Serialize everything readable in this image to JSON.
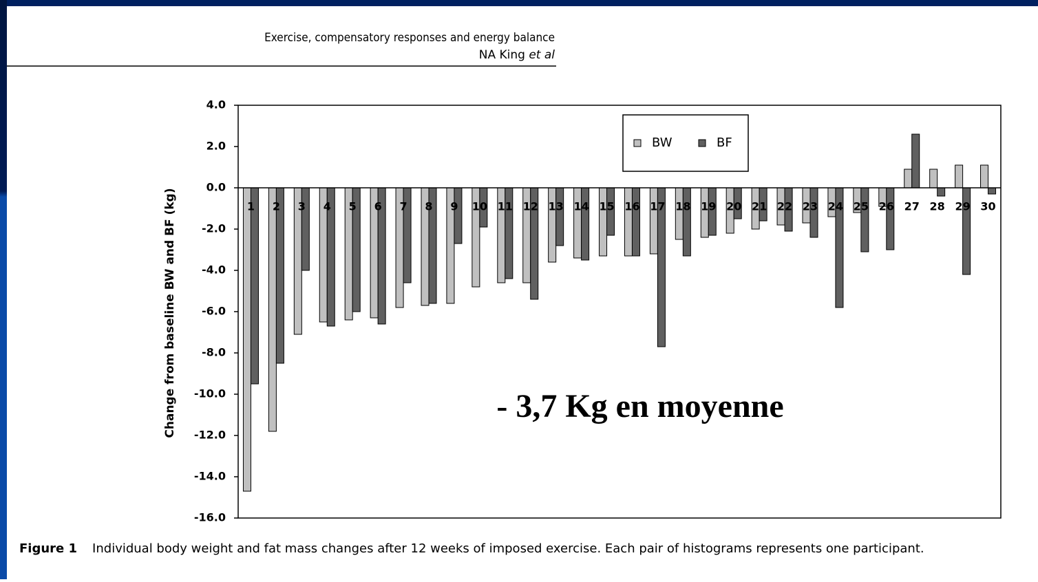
{
  "header": {
    "title": "Exercise, compensatory responses and energy balance",
    "author": "NA King",
    "author_suffix": "et al"
  },
  "chart_data": {
    "type": "bar",
    "y_label": "Change from baseline BW and BF (kg)",
    "categories": [
      "1",
      "2",
      "3",
      "4",
      "5",
      "6",
      "7",
      "8",
      "9",
      "10",
      "11",
      "12",
      "13",
      "14",
      "15",
      "16",
      "17",
      "18",
      "19",
      "20",
      "21",
      "22",
      "23",
      "24",
      "25",
      "26",
      "27",
      "28",
      "29",
      "30"
    ],
    "series": [
      {
        "name": "BW",
        "color": "#c0c0c0",
        "values": [
          -14.7,
          -11.8,
          -7.1,
          -6.5,
          -6.4,
          -6.3,
          -5.8,
          -5.7,
          -5.6,
          -4.8,
          -4.6,
          -4.6,
          -3.6,
          -3.4,
          -3.3,
          -3.3,
          -3.2,
          -2.5,
          -2.4,
          -2.2,
          -2.0,
          -1.8,
          -1.7,
          -1.4,
          -1.2,
          -0.9,
          0.9,
          0.9,
          1.1,
          1.1
        ]
      },
      {
        "name": "BF",
        "color": "#606060",
        "values": [
          -9.5,
          -8.5,
          -4.0,
          -6.7,
          -6.0,
          -6.6,
          -4.6,
          -5.6,
          -2.7,
          -1.9,
          -4.4,
          -5.4,
          -2.8,
          -3.5,
          -2.3,
          -3.3,
          -7.7,
          -3.3,
          -2.3,
          -1.5,
          -1.6,
          -2.1,
          -2.4,
          -5.8,
          -3.1,
          -3.0,
          2.6,
          -0.4,
          -4.2,
          -0.3
        ]
      }
    ],
    "ylim": [
      -16,
      4
    ],
    "yticks": [
      {
        "value": -16,
        "label": "-16.0"
      },
      {
        "value": -14,
        "label": "-14.0"
      },
      {
        "value": -12,
        "label": "-12.0"
      },
      {
        "value": -10,
        "label": "-10.0"
      },
      {
        "value": -8,
        "label": "-8.0"
      },
      {
        "value": -6,
        "label": "-6.0"
      },
      {
        "value": -4,
        "label": "-4.0"
      },
      {
        "value": -2,
        "label": "-2.0"
      },
      {
        "value": 0,
        "label": "0.0"
      },
      {
        "value": 2,
        "label": "2.0"
      },
      {
        "value": 4,
        "label": "4.0"
      }
    ],
    "legend": "upper-center",
    "annotation": "- 3,7 Kg en moyenne"
  },
  "caption": {
    "label": "Figure 1",
    "text": "Individual body weight and fat mass changes after 12 weeks of imposed exercise. Each pair of histograms represents one participant."
  }
}
